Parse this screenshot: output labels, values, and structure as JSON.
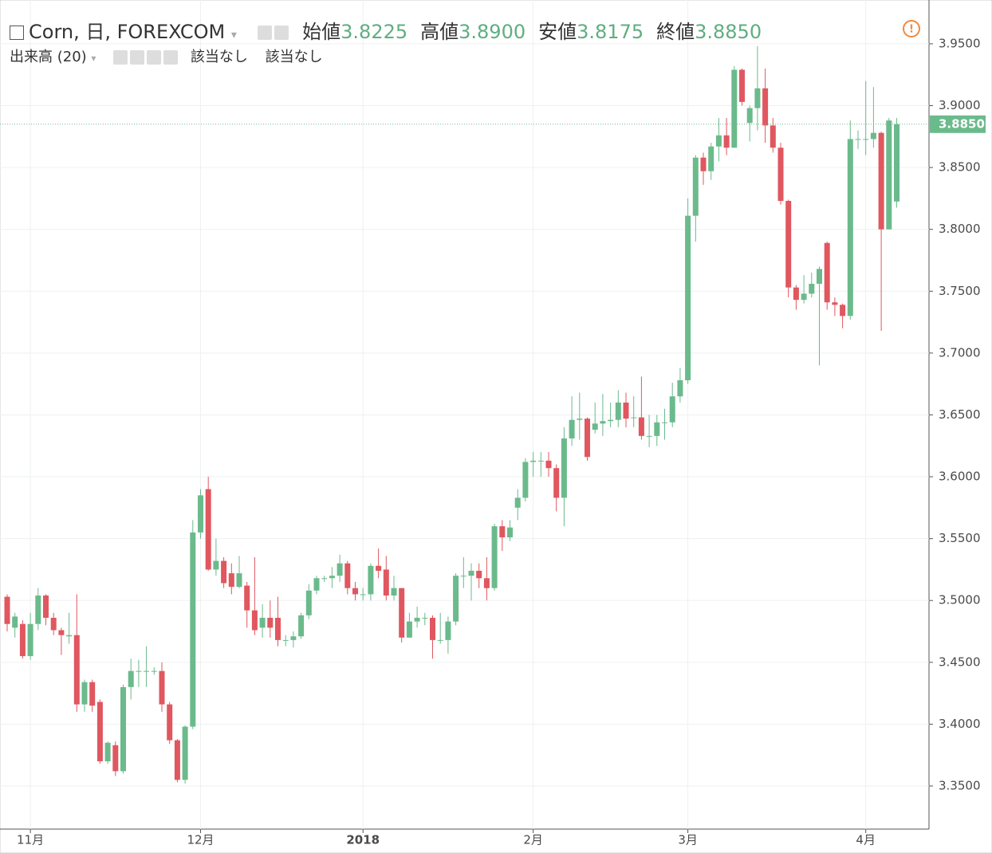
{
  "header": {
    "title": "Corn, 日, FOREXCOM",
    "ohlc": [
      {
        "label": "始値",
        "value": "3.8225"
      },
      {
        "label": "高値",
        "value": "3.8900"
      },
      {
        "label": "安値",
        "value": "3.8175"
      },
      {
        "label": "終値",
        "value": "3.8850"
      }
    ],
    "indicator": "出来高 (20)",
    "indicator_values": [
      "該当なし",
      "該当なし"
    ]
  },
  "chart_data": {
    "type": "candlestick",
    "up_color": "#6bba8c",
    "down_color": "#e0575f",
    "grid": true,
    "categories": [
      null,
      null,
      null,
      "11月",
      null,
      null,
      null,
      null,
      null,
      null,
      null,
      null,
      null,
      null,
      null,
      null,
      null,
      null,
      null,
      null,
      null,
      null,
      null,
      null,
      null,
      "12月",
      null,
      null,
      null,
      null,
      null,
      null,
      null,
      null,
      null,
      null,
      null,
      null,
      null,
      null,
      null,
      null,
      null,
      null,
      null,
      null,
      "2018",
      null,
      null,
      null,
      null,
      null,
      null,
      null,
      null,
      null,
      null,
      null,
      null,
      null,
      null,
      null,
      null,
      null,
      null,
      null,
      null,
      null,
      "2月",
      null,
      null,
      null,
      null,
      null,
      null,
      null,
      null,
      null,
      null,
      null,
      null,
      null,
      null,
      null,
      null,
      null,
      null,
      null,
      "3月",
      null,
      null,
      null,
      null,
      null,
      null,
      null,
      null,
      null,
      null,
      null,
      null,
      null,
      null,
      null,
      null,
      null,
      null,
      null,
      null,
      null,
      null,
      "4月",
      null,
      null,
      null,
      null
    ],
    "open": [
      3.503,
      3.478,
      3.481,
      3.455,
      3.481,
      3.504,
      3.486,
      3.476,
      3.471,
      3.472,
      3.416,
      3.434,
      3.418,
      3.37,
      3.383,
      3.362,
      3.43,
      3.443,
      3.443,
      3.443,
      3.443,
      3.416,
      3.387,
      3.355,
      3.398,
      3.555,
      3.59,
      3.525,
      3.532,
      3.522,
      3.511,
      3.512,
      3.492,
      3.478,
      3.486,
      3.486,
      3.468,
      3.468,
      3.471,
      3.488,
      3.508,
      3.518,
      3.518,
      3.52,
      3.53,
      3.51,
      3.505,
      3.505,
      3.528,
      3.525,
      3.504,
      3.51,
      3.47,
      3.483,
      3.486,
      3.486,
      3.468,
      3.468,
      3.483,
      3.52,
      3.52,
      3.524,
      3.518,
      3.51,
      3.56,
      3.551,
      3.575,
      3.583,
      3.612,
      3.613,
      3.613,
      3.607,
      3.583,
      3.631,
      3.646,
      3.647,
      3.638,
      3.643,
      3.645,
      3.646,
      3.66,
      3.648,
      3.648,
      3.633,
      3.633,
      3.644,
      3.644,
      3.665,
      3.678,
      3.811,
      3.858,
      3.847,
      3.867,
      3.876,
      3.866,
      3.929,
      3.886,
      3.898,
      3.914,
      3.884,
      3.866,
      3.823,
      3.753,
      3.743,
      3.748,
      3.756,
      3.789,
      3.741,
      3.739,
      3.73,
      3.873,
      3.873,
      3.873,
      3.878,
      3.8,
      3.8225
    ],
    "high": [
      3.505,
      3.49,
      3.484,
      3.49,
      3.51,
      3.505,
      3.49,
      3.478,
      3.49,
      3.505,
      3.436,
      3.436,
      3.42,
      3.386,
      3.386,
      3.432,
      3.453,
      3.452,
      3.463,
      3.446,
      3.45,
      3.418,
      3.388,
      3.399,
      3.565,
      3.59,
      3.6,
      3.55,
      3.535,
      3.53,
      3.536,
      3.515,
      3.535,
      3.497,
      3.5,
      3.503,
      3.472,
      3.475,
      3.49,
      3.513,
      3.52,
      3.52,
      3.527,
      3.537,
      3.532,
      3.515,
      3.51,
      3.53,
      3.542,
      3.536,
      3.52,
      3.51,
      3.49,
      3.495,
      3.49,
      3.488,
      3.49,
      3.487,
      3.522,
      3.535,
      3.53,
      3.53,
      3.535,
      3.562,
      3.565,
      3.565,
      3.59,
      3.615,
      3.62,
      3.62,
      3.62,
      3.61,
      3.64,
      3.665,
      3.668,
      3.648,
      3.66,
      3.667,
      3.66,
      3.67,
      3.668,
      3.665,
      3.681,
      3.65,
      3.65,
      3.655,
      3.676,
      3.688,
      3.825,
      3.86,
      3.862,
      3.87,
      3.89,
      3.89,
      3.932,
      3.93,
      3.9,
      3.948,
      3.93,
      3.89,
      3.87,
      3.824,
      3.755,
      3.763,
      3.765,
      3.77,
      3.79,
      3.745,
      3.74,
      3.888,
      3.88,
      3.92,
      3.915,
      3.879,
      3.89,
      3.89
    ],
    "low": [
      3.475,
      3.47,
      3.453,
      3.452,
      3.476,
      3.48,
      3.472,
      3.456,
      3.465,
      3.41,
      3.41,
      3.41,
      3.368,
      3.368,
      3.358,
      3.36,
      3.42,
      3.43,
      3.43,
      3.44,
      3.41,
      3.384,
      3.353,
      3.352,
      3.396,
      3.55,
      3.524,
      3.52,
      3.51,
      3.505,
      3.51,
      3.478,
      3.472,
      3.47,
      3.47,
      3.463,
      3.463,
      3.462,
      3.469,
      3.485,
      3.505,
      3.515,
      3.51,
      3.515,
      3.505,
      3.5,
      3.5,
      3.5,
      3.518,
      3.5,
      3.5,
      3.466,
      3.47,
      3.478,
      3.48,
      3.453,
      3.465,
      3.457,
      3.48,
      3.51,
      3.5,
      3.51,
      3.5,
      3.508,
      3.54,
      3.548,
      3.565,
      3.58,
      3.6,
      3.6,
      3.6,
      3.572,
      3.56,
      3.625,
      3.63,
      3.613,
      3.635,
      3.633,
      3.64,
      3.64,
      3.64,
      3.64,
      3.63,
      3.624,
      3.625,
      3.63,
      3.64,
      3.66,
      3.675,
      3.79,
      3.836,
      3.84,
      3.855,
      3.86,
      3.866,
      3.9,
      3.871,
      3.88,
      3.87,
      3.862,
      3.82,
      3.745,
      3.735,
      3.74,
      3.745,
      3.69,
      3.735,
      3.73,
      3.72,
      3.727,
      3.865,
      3.86,
      3.866,
      3.718,
      3.8,
      3.8175
    ],
    "close": [
      3.481,
      3.487,
      3.455,
      3.481,
      3.504,
      3.486,
      3.476,
      3.472,
      3.472,
      3.416,
      3.434,
      3.415,
      3.37,
      3.385,
      3.362,
      3.43,
      3.443,
      3.443,
      3.443,
      3.443,
      3.416,
      3.387,
      3.355,
      3.398,
      3.555,
      3.585,
      3.525,
      3.532,
      3.514,
      3.511,
      3.522,
      3.492,
      3.476,
      3.486,
      3.478,
      3.468,
      3.468,
      3.471,
      3.488,
      3.508,
      3.518,
      3.518,
      3.52,
      3.53,
      3.51,
      3.505,
      3.505,
      3.528,
      3.524,
      3.504,
      3.51,
      3.47,
      3.483,
      3.486,
      3.486,
      3.468,
      3.468,
      3.483,
      3.52,
      3.52,
      3.524,
      3.518,
      3.51,
      3.56,
      3.551,
      3.559,
      3.583,
      3.612,
      3.613,
      3.613,
      3.607,
      3.583,
      3.631,
      3.646,
      3.647,
      3.616,
      3.643,
      3.645,
      3.646,
      3.66,
      3.647,
      3.648,
      3.633,
      3.633,
      3.644,
      3.644,
      3.665,
      3.678,
      3.811,
      3.858,
      3.847,
      3.867,
      3.876,
      3.866,
      3.929,
      3.903,
      3.898,
      3.914,
      3.884,
      3.866,
      3.823,
      3.753,
      3.743,
      3.748,
      3.756,
      3.768,
      3.741,
      3.739,
      3.73,
      3.873,
      3.873,
      3.873,
      3.878,
      3.8,
      3.888,
      3.885
    ],
    "ylim": [
      3.3152,
      3.9854
    ],
    "yticks": [
      {
        "value": 3.35,
        "label": "3.3500"
      },
      {
        "value": 3.4,
        "label": "3.4000"
      },
      {
        "value": 3.45,
        "label": "3.4500"
      },
      {
        "value": 3.5,
        "label": "3.5000"
      },
      {
        "value": 3.55,
        "label": "3.5500"
      },
      {
        "value": 3.6,
        "label": "3.6000"
      },
      {
        "value": 3.65,
        "label": "3.6500"
      },
      {
        "value": 3.7,
        "label": "3.7000"
      },
      {
        "value": 3.75,
        "label": "3.7500"
      },
      {
        "value": 3.8,
        "label": "3.8000"
      },
      {
        "value": 3.85,
        "label": "3.8500"
      },
      {
        "value": 3.9,
        "label": "3.9000"
      },
      {
        "value": 3.95,
        "label": "3.9500"
      }
    ],
    "last_price": {
      "value": 3.885,
      "label": "3.8850"
    }
  }
}
